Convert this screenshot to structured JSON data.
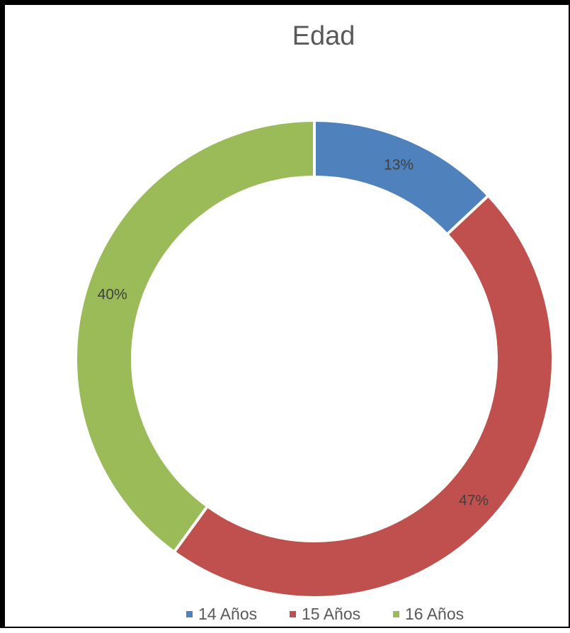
{
  "chart_data": {
    "type": "pie",
    "subtype": "donut",
    "title": "Edad",
    "categories": [
      "14 Años",
      "15 Años",
      "16 Años"
    ],
    "values": [
      13,
      47,
      40
    ],
    "data_labels": [
      "13%",
      "47%",
      "40%"
    ],
    "colors": [
      "#4f81bd",
      "#c0504d",
      "#9bbb59"
    ],
    "legend": "bottom"
  }
}
